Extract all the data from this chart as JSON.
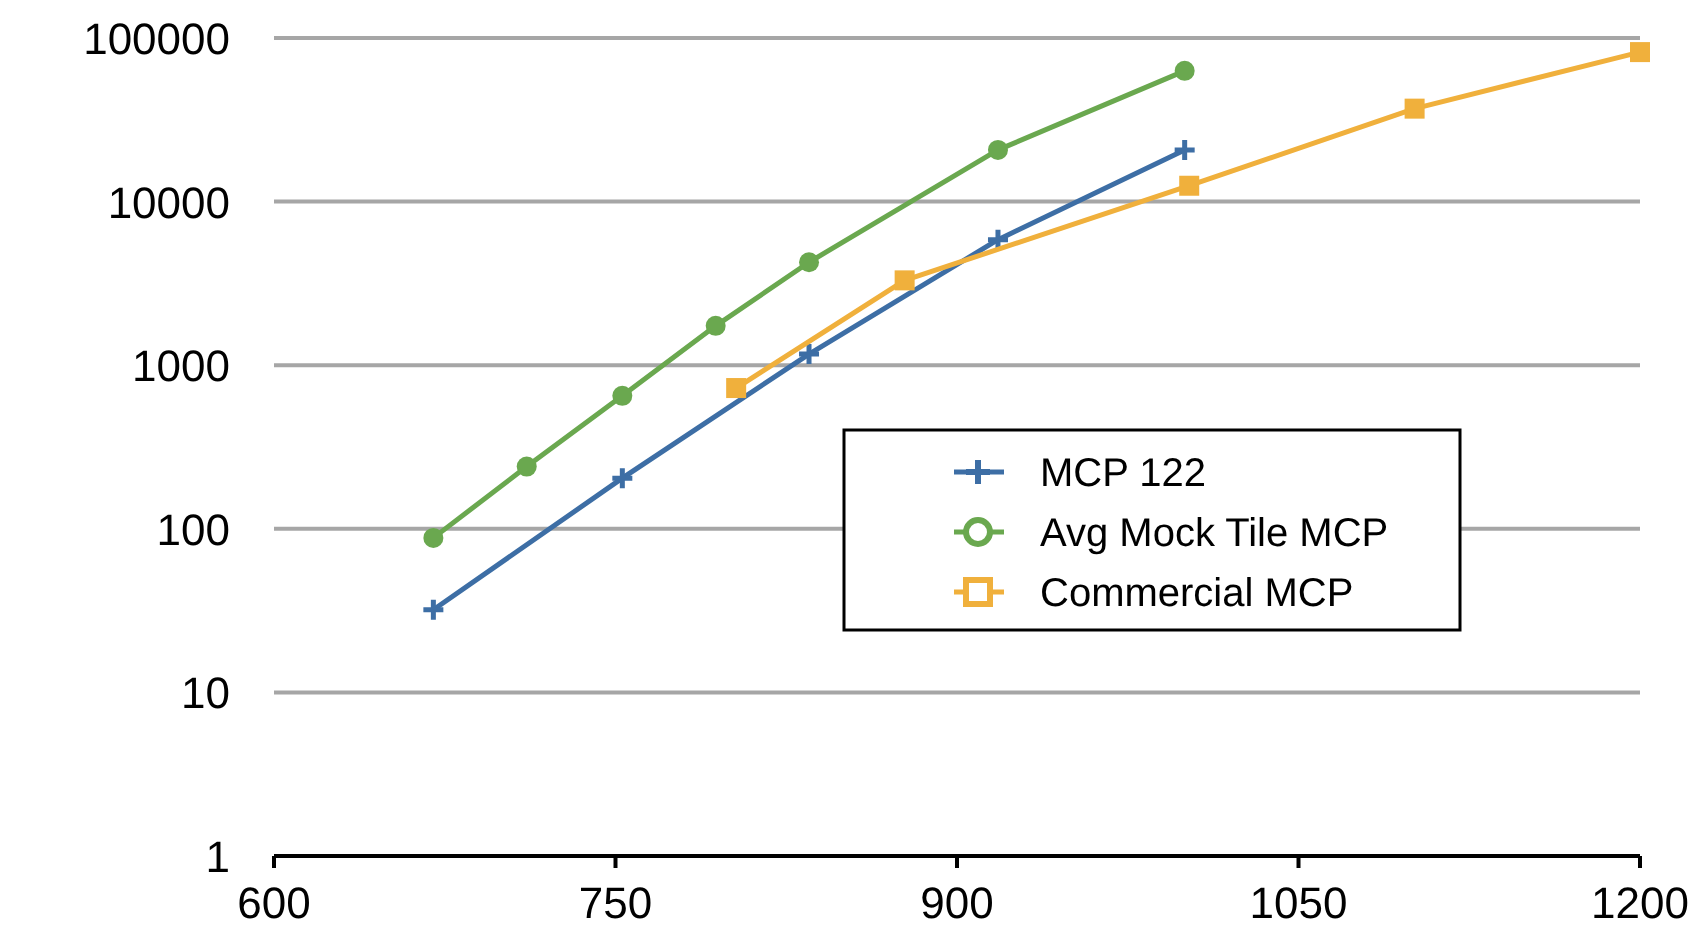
{
  "chart_data": {
    "type": "line",
    "log": "y",
    "grid": "y",
    "legend": "center right",
    "xlim": [
      600,
      1200
    ],
    "xticks": [
      600,
      750,
      900,
      1050,
      1200
    ],
    "ylim": [
      1,
      100000
    ],
    "yticks": [
      1,
      10,
      100,
      1000,
      10000,
      100000
    ],
    "series": [
      {
        "name": "MCP 122",
        "color": "#3d6ea5",
        "marker": "cross",
        "x": [
          670,
          753,
          835,
          918,
          1000
        ],
        "values": [
          32,
          204,
          1170,
          5850,
          20700
        ]
      },
      {
        "name": "Avg Mock Tile MCP",
        "color": "#6aa84f",
        "marker": "circle",
        "x": [
          670,
          711,
          753,
          794,
          835,
          918,
          1000
        ],
        "values": [
          88,
          240,
          650,
          1740,
          4260,
          20700,
          63000
        ]
      },
      {
        "name": "Commercial MCP",
        "color": "#f0b03c",
        "marker": "square",
        "x": [
          803,
          877,
          1002,
          1101,
          1200
        ],
        "values": [
          725,
          3300,
          12500,
          37000,
          82000
        ]
      }
    ]
  }
}
